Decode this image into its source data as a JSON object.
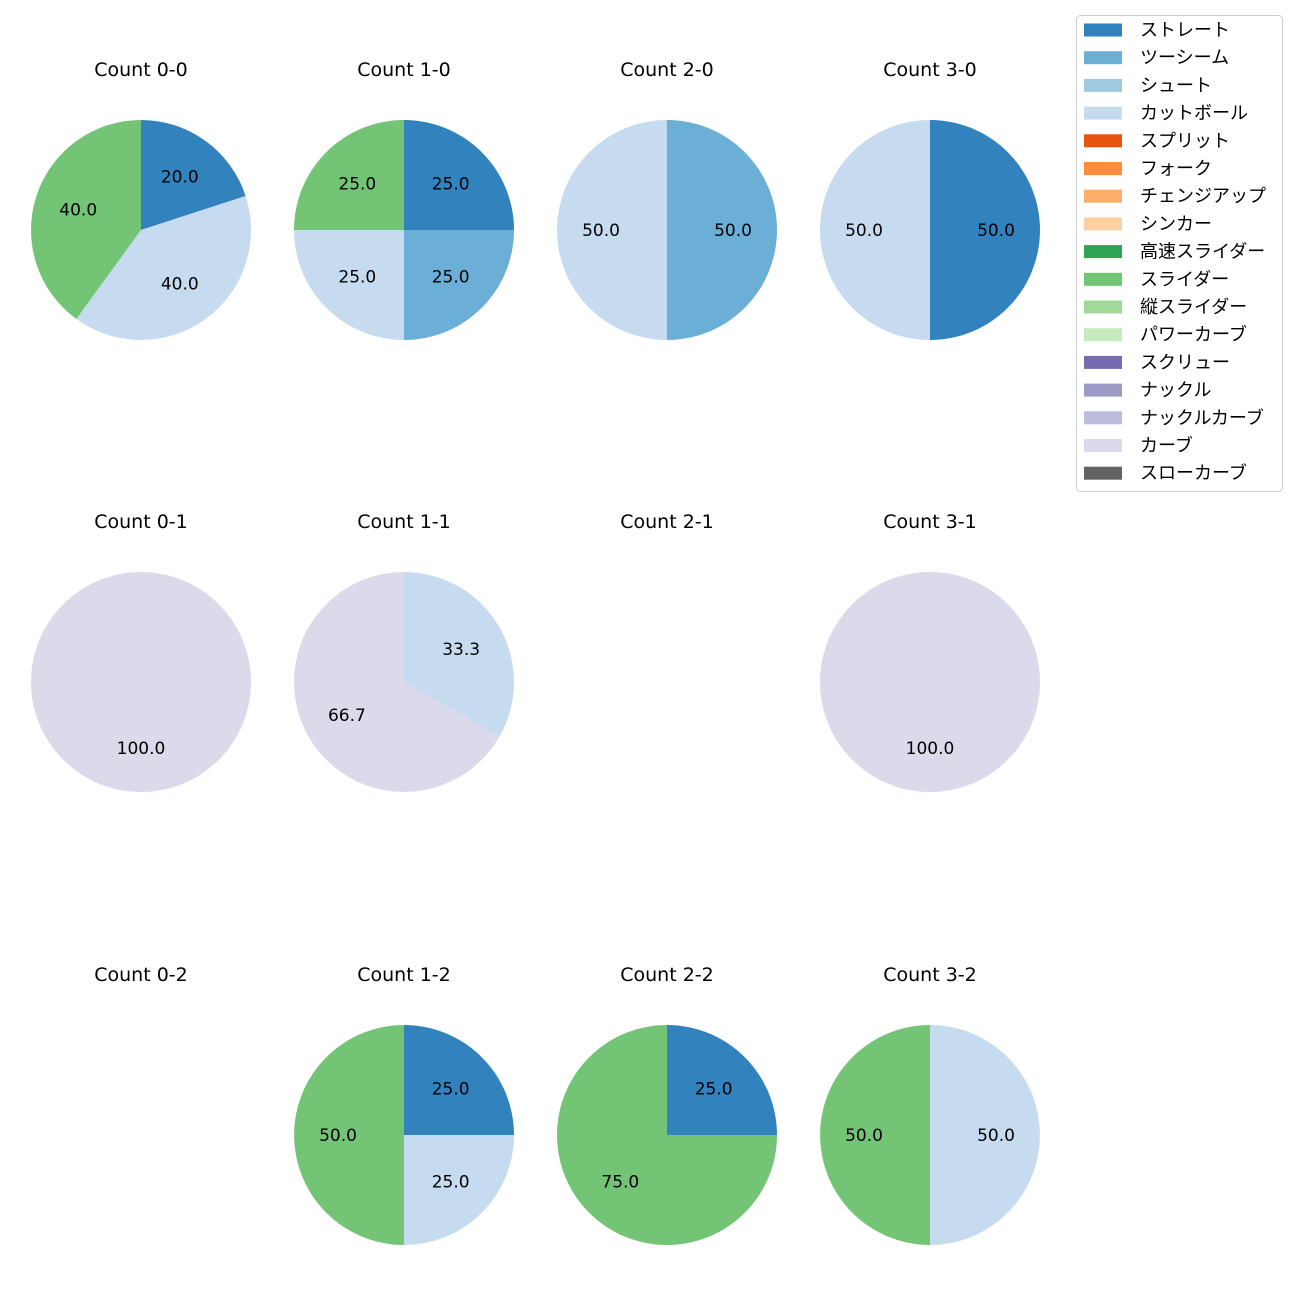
{
  "legend": {
    "items": [
      {
        "label": "ストレート",
        "color": "#3182bd"
      },
      {
        "label": "ツーシーム",
        "color": "#6baed6"
      },
      {
        "label": "シュート",
        "color": "#9ecae1"
      },
      {
        "label": "カットボール",
        "color": "#c6dbef"
      },
      {
        "label": "スプリット",
        "color": "#e6550d"
      },
      {
        "label": "フォーク",
        "color": "#fd8d3c"
      },
      {
        "label": "チェンジアップ",
        "color": "#fdae6b"
      },
      {
        "label": "シンカー",
        "color": "#fdd0a2"
      },
      {
        "label": "高速スライダー",
        "color": "#31a354"
      },
      {
        "label": "スライダー",
        "color": "#74c476"
      },
      {
        "label": "縦スライダー",
        "color": "#a1d99b"
      },
      {
        "label": "パワーカーブ",
        "color": "#c7e9c0"
      },
      {
        "label": "スクリュー",
        "color": "#756bb1"
      },
      {
        "label": "ナックル",
        "color": "#9e9ac8"
      },
      {
        "label": "ナックルカーブ",
        "color": "#bcbddc"
      },
      {
        "label": "カーブ",
        "color": "#dadaeb"
      },
      {
        "label": "スローカーブ",
        "color": "#636363"
      }
    ]
  },
  "chart_data": [
    {
      "type": "pie",
      "title": "Count 0-0",
      "slices": [
        {
          "label": "ストレート",
          "value": 20.0
        },
        {
          "label": "カットボール",
          "value": 40.0
        },
        {
          "label": "スライダー",
          "value": 40.0
        }
      ]
    },
    {
      "type": "pie",
      "title": "Count 1-0",
      "slices": [
        {
          "label": "ストレート",
          "value": 25.0
        },
        {
          "label": "ツーシーム",
          "value": 25.0
        },
        {
          "label": "カットボール",
          "value": 25.0
        },
        {
          "label": "スライダー",
          "value": 25.0
        }
      ]
    },
    {
      "type": "pie",
      "title": "Count 2-0",
      "slices": [
        {
          "label": "ツーシーム",
          "value": 50.0
        },
        {
          "label": "カットボール",
          "value": 50.0
        }
      ]
    },
    {
      "type": "pie",
      "title": "Count 3-0",
      "slices": [
        {
          "label": "ストレート",
          "value": 50.0
        },
        {
          "label": "カットボール",
          "value": 50.0
        }
      ]
    },
    {
      "type": "pie",
      "title": "Count 0-1",
      "slices": [
        {
          "label": "カーブ",
          "value": 100.0
        }
      ]
    },
    {
      "type": "pie",
      "title": "Count 1-1",
      "slices": [
        {
          "label": "カットボール",
          "value": 33.3
        },
        {
          "label": "カーブ",
          "value": 66.7
        }
      ]
    },
    {
      "type": "pie",
      "title": "Count 2-1",
      "slices": []
    },
    {
      "type": "pie",
      "title": "Count 3-1",
      "slices": [
        {
          "label": "カーブ",
          "value": 100.0
        }
      ]
    },
    {
      "type": "pie",
      "title": "Count 0-2",
      "slices": []
    },
    {
      "type": "pie",
      "title": "Count 1-2",
      "slices": [
        {
          "label": "ストレート",
          "value": 25.0
        },
        {
          "label": "カットボール",
          "value": 25.0
        },
        {
          "label": "スライダー",
          "value": 50.0
        }
      ]
    },
    {
      "type": "pie",
      "title": "Count 2-2",
      "slices": [
        {
          "label": "ストレート",
          "value": 25.0
        },
        {
          "label": "スライダー",
          "value": 75.0
        }
      ]
    },
    {
      "type": "pie",
      "title": "Count 3-2",
      "slices": [
        {
          "label": "カットボール",
          "value": 50.0
        },
        {
          "label": "スライダー",
          "value": 50.0
        }
      ]
    }
  ]
}
